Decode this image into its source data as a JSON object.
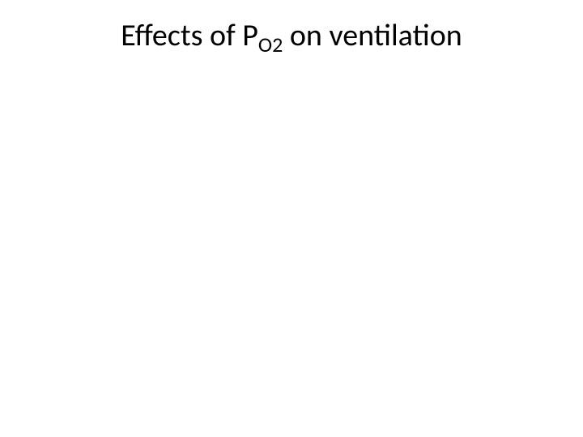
{
  "slide": {
    "title_prefix": "Effects of P",
    "title_subscript": "O2",
    "title_suffix": " on ventilation",
    "title_color": "#000000",
    "title_fontsize": 38,
    "subscript_fontsize": 26,
    "background_color": "#ffffff",
    "font_family": "Calibri"
  }
}
